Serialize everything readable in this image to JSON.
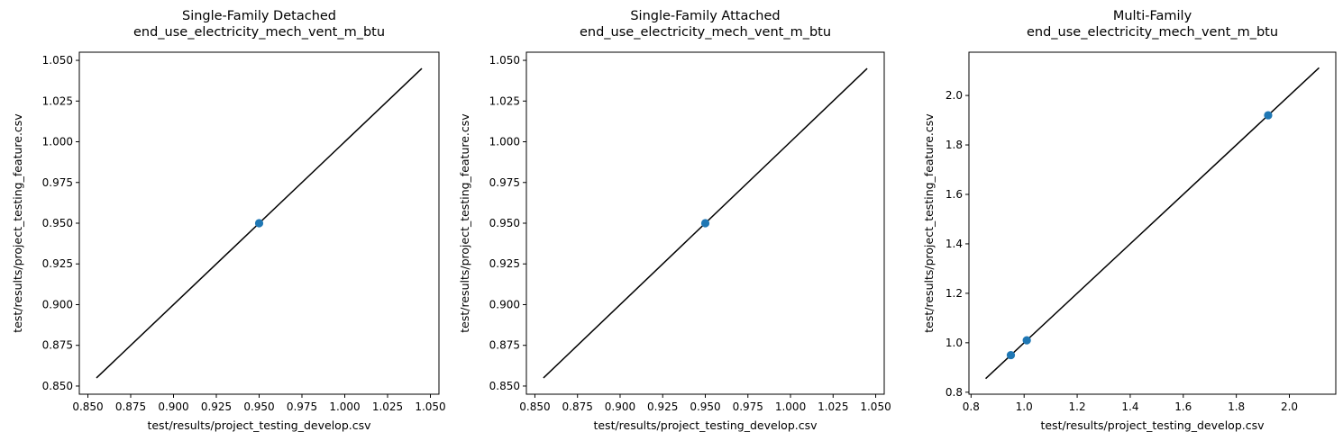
{
  "chart_data": [
    {
      "type": "scatter",
      "title_line1": "Single-Family Detached",
      "title_line2": "end_use_electricity_mech_vent_m_btu",
      "xlabel": "test/results/project_testing_develop.csv",
      "ylabel": "test/results/project_testing_feature.csv",
      "xlim": [
        0.845,
        1.055
      ],
      "ylim": [
        0.845,
        1.055
      ],
      "xticks": [
        0.85,
        0.875,
        0.9,
        0.925,
        0.95,
        0.975,
        1.0,
        1.025,
        1.05
      ],
      "xtick_labels": [
        "0.850",
        "0.875",
        "0.900",
        "0.925",
        "0.950",
        "0.975",
        "1.000",
        "1.025",
        "1.050"
      ],
      "yticks": [
        0.85,
        0.875,
        0.9,
        0.925,
        0.95,
        0.975,
        1.0,
        1.025,
        1.05
      ],
      "ytick_labels": [
        "0.850",
        "0.875",
        "0.900",
        "0.925",
        "0.950",
        "0.975",
        "1.000",
        "1.025",
        "1.050"
      ],
      "points": [
        {
          "x": 0.95,
          "y": 0.95
        }
      ],
      "reference_line": {
        "from": [
          0.855,
          0.855
        ],
        "to": [
          1.045,
          1.045
        ]
      },
      "grid": false
    },
    {
      "type": "scatter",
      "title_line1": "Single-Family Attached",
      "title_line2": "end_use_electricity_mech_vent_m_btu",
      "xlabel": "test/results/project_testing_develop.csv",
      "ylabel": "test/results/project_testing_feature.csv",
      "xlim": [
        0.845,
        1.055
      ],
      "ylim": [
        0.845,
        1.055
      ],
      "xticks": [
        0.85,
        0.875,
        0.9,
        0.925,
        0.95,
        0.975,
        1.0,
        1.025,
        1.05
      ],
      "xtick_labels": [
        "0.850",
        "0.875",
        "0.900",
        "0.925",
        "0.950",
        "0.975",
        "1.000",
        "1.025",
        "1.050"
      ],
      "yticks": [
        0.85,
        0.875,
        0.9,
        0.925,
        0.95,
        0.975,
        1.0,
        1.025,
        1.05
      ],
      "ytick_labels": [
        "0.850",
        "0.875",
        "0.900",
        "0.925",
        "0.950",
        "0.975",
        "1.000",
        "1.025",
        "1.050"
      ],
      "points": [
        {
          "x": 0.95,
          "y": 0.95
        }
      ],
      "reference_line": {
        "from": [
          0.855,
          0.855
        ],
        "to": [
          1.045,
          1.045
        ]
      },
      "grid": false
    },
    {
      "type": "scatter",
      "title_line1": "Multi-Family",
      "title_line2": "end_use_electricity_mech_vent_m_btu",
      "xlabel": "test/results/project_testing_develop.csv",
      "ylabel": "test/results/project_testing_feature.csv",
      "xlim": [
        0.792,
        2.175
      ],
      "ylim": [
        0.792,
        2.175
      ],
      "xticks": [
        0.8,
        1.0,
        1.2,
        1.4,
        1.6,
        1.8,
        2.0
      ],
      "xtick_labels": [
        "0.8",
        "1.0",
        "1.2",
        "1.4",
        "1.6",
        "1.8",
        "2.0"
      ],
      "yticks": [
        0.8,
        1.0,
        1.2,
        1.4,
        1.6,
        1.8,
        2.0
      ],
      "ytick_labels": [
        "0.8",
        "1.0",
        "1.2",
        "1.4",
        "1.6",
        "1.8",
        "2.0"
      ],
      "points": [
        {
          "x": 0.95,
          "y": 0.95
        },
        {
          "x": 1.01,
          "y": 1.01
        },
        {
          "x": 1.92,
          "y": 1.92
        }
      ],
      "reference_line": {
        "from": [
          0.855,
          0.855
        ],
        "to": [
          2.112,
          2.112
        ]
      },
      "grid": false
    }
  ],
  "colors": {
    "point": "#1f77b4",
    "reference_line": "#000000",
    "axes": "#000000"
  }
}
